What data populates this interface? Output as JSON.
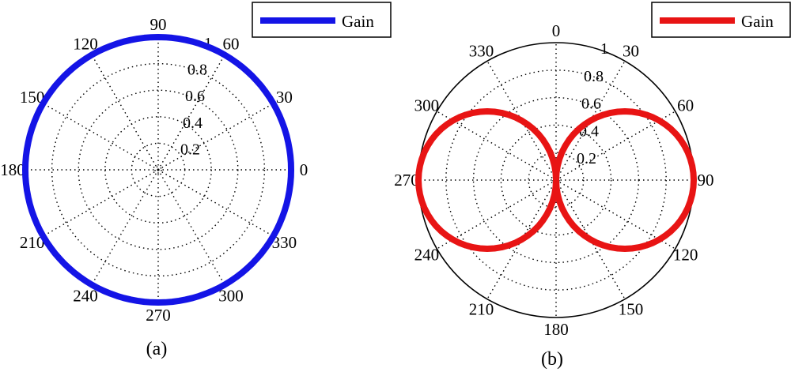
{
  "chart_data": [
    {
      "type": "polar",
      "caption": "(a)",
      "angle_direction": "counterclockwise",
      "zero_position": "right",
      "angle_ticks": [
        "0",
        "30",
        "60",
        "90",
        "120",
        "150",
        "180",
        "210",
        "240",
        "270",
        "300",
        "330"
      ],
      "radial_ticks": [
        "0.2",
        "0.4",
        "0.6",
        "0.8",
        "1"
      ],
      "rlim": [
        0,
        1
      ],
      "grid": true,
      "outer_circle": false,
      "legend": {
        "placement": "top-right",
        "entries": [
          "Gain"
        ]
      },
      "series": [
        {
          "name": "Gain",
          "color": "#1414e6",
          "theta_deg": [
            0,
            30,
            60,
            90,
            120,
            150,
            180,
            210,
            240,
            270,
            300,
            330,
            360
          ],
          "r": [
            1,
            1,
            1,
            1,
            1,
            1,
            1,
            1,
            1,
            1,
            1,
            1,
            1
          ]
        }
      ]
    },
    {
      "type": "polar",
      "caption": "(b)",
      "angle_direction": "clockwise",
      "zero_position": "top",
      "angle_ticks": [
        "0",
        "30",
        "60",
        "90",
        "120",
        "150",
        "180",
        "210",
        "240",
        "270",
        "300",
        "330"
      ],
      "radial_ticks": [
        "0.2",
        "0.4",
        "0.6",
        "0.8",
        "1"
      ],
      "rlim": [
        0,
        1
      ],
      "grid": true,
      "outer_circle": true,
      "legend": {
        "placement": "top-right",
        "entries": [
          "Gain"
        ]
      },
      "series": [
        {
          "name": "Gain",
          "color": "#e81414",
          "pattern": "|sin(theta)|",
          "r_max": 1
        }
      ]
    }
  ]
}
